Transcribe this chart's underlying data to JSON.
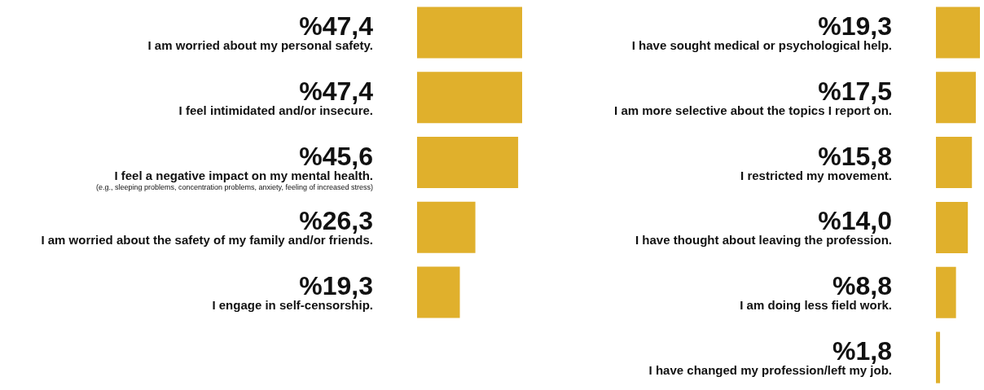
{
  "chart_data": [
    {
      "type": "bar",
      "orientation": "horizontal",
      "categories": [
        "I am worried about my personal safety.",
        "I feel intimidated and/or insecure.",
        "I feel a negative impact on my mental health.\n(e.g., sleeping problems, concentration problems, anxiety, feeling of increased stress)",
        "I am worried about the safety of my family and/or friends.",
        "I engage in self-censorship."
      ],
      "values": [
        47.4,
        47.4,
        45.6,
        26.3,
        19.3
      ],
      "value_labels": [
        "%47,4",
        "%47,4",
        "%45,6",
        "%26,3",
        "%19,3"
      ],
      "color": "#e0b02c",
      "tick_labels": false
    },
    {
      "type": "bar",
      "orientation": "horizontal",
      "categories": [
        "I have sought medical or psychological help.",
        "I am more selective about the topics I report on.",
        "I restricted my movement.",
        "I have thought about leaving the profession.",
        "I am doing less field work.",
        "I have changed my profession/left my job."
      ],
      "values": [
        19.3,
        17.5,
        15.8,
        14.0,
        8.8,
        1.8
      ],
      "value_labels": [
        "%19,3",
        "%17,5",
        "%15,8",
        "%14,0",
        "%8,8",
        "%1,8"
      ],
      "color": "#e0b02c",
      "tick_labels": false
    }
  ]
}
